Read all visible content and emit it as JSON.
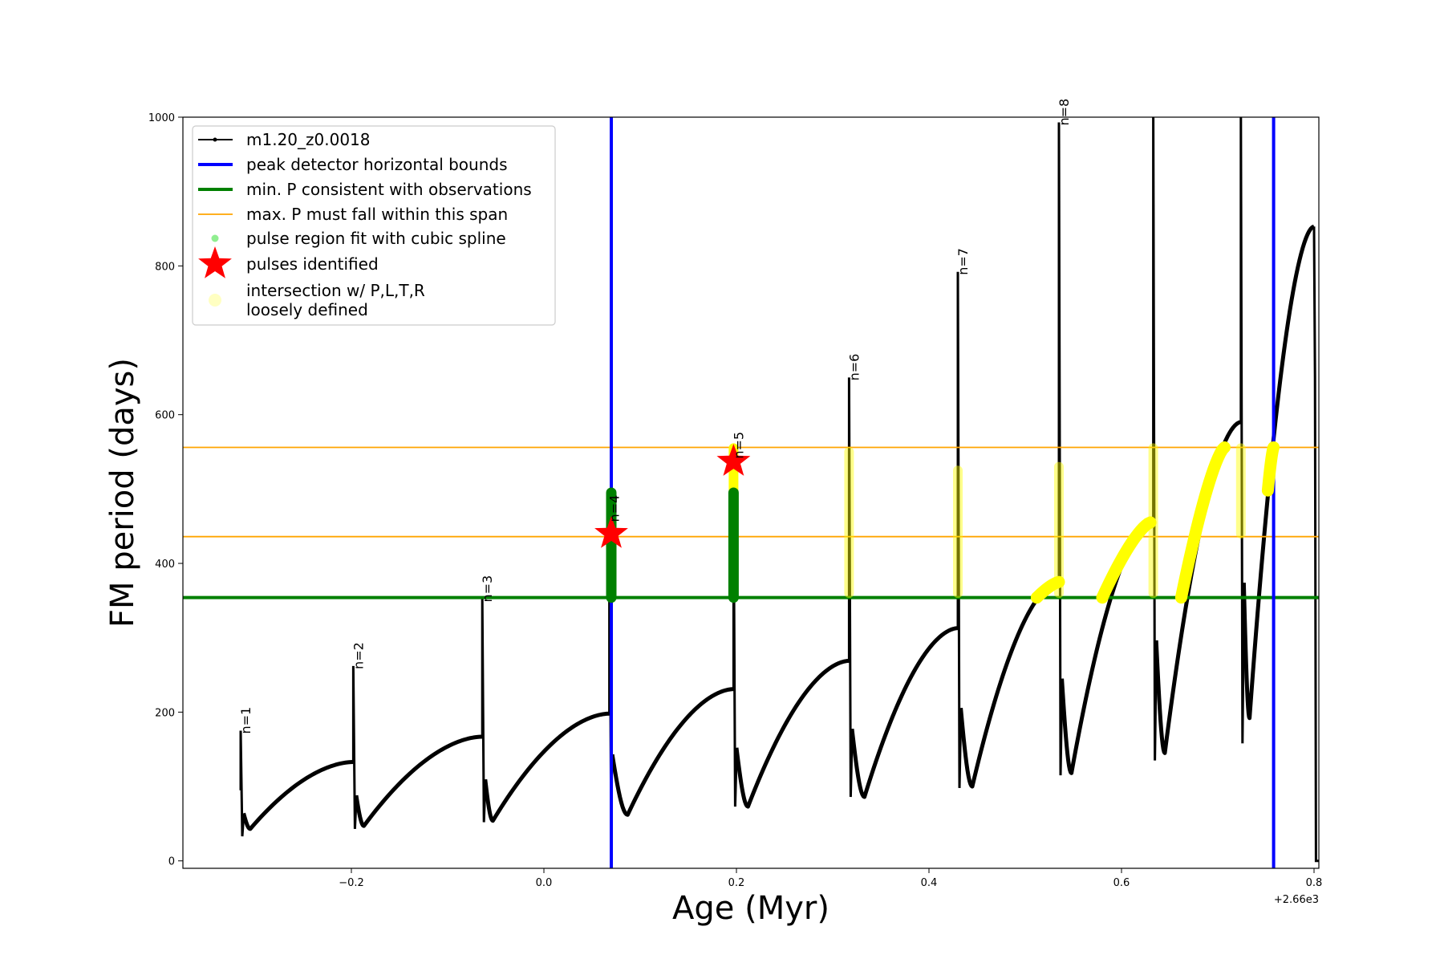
{
  "chart_data": {
    "type": "line",
    "title": "",
    "xlabel": "Age (Myr)",
    "ylabel": "FM period (days)",
    "x_offset_label": "+2.66e3",
    "xlim": [
      -0.375,
      0.805
    ],
    "ylim": [
      -10,
      1000
    ],
    "xticks": [
      {
        "value": -0.2,
        "label": "−0.2"
      },
      {
        "value": 0.0,
        "label": "0.0"
      },
      {
        "value": 0.2,
        "label": "0.2"
      },
      {
        "value": 0.4,
        "label": "0.4"
      },
      {
        "value": 0.6,
        "label": "0.6"
      },
      {
        "value": 0.8,
        "label": "0.8"
      }
    ],
    "yticks": [
      {
        "value": 0,
        "label": "0"
      },
      {
        "value": 200,
        "label": "200"
      },
      {
        "value": 400,
        "label": "400"
      },
      {
        "value": 600,
        "label": "600"
      },
      {
        "value": 800,
        "label": "800"
      },
      {
        "value": 1000,
        "label": "1000"
      }
    ],
    "series": {
      "name": "m1.20_z0.0018",
      "color": "#000000",
      "pulses": [
        {
          "x": -0.315,
          "tmin": -0.305,
          "peak": 175,
          "trough": 33,
          "startP": 95,
          "bottom": 43,
          "tEnd": -0.198,
          "endP": 133
        },
        {
          "x": -0.198,
          "tmin": -0.187,
          "peak": 262,
          "trough": 43,
          "startP": 133,
          "bottom": 47,
          "tEnd": -0.064,
          "endP": 167
        },
        {
          "x": -0.064,
          "tmin": -0.053,
          "peak": 352,
          "trough": 52,
          "startP": 167,
          "bottom": 54,
          "tEnd": 0.068,
          "endP": 198
        },
        {
          "x": 0.068,
          "tmin": 0.087,
          "peak": 470,
          "trough": 88,
          "startP": 198,
          "bottom": 62,
          "tEnd": 0.197,
          "endP": 231
        },
        {
          "x": 0.197,
          "tmin": 0.212,
          "peak": 495,
          "trough": 73,
          "startP": 231,
          "bottom": 73,
          "tEnd": 0.317,
          "endP": 269
        },
        {
          "x": 0.317,
          "tmin": 0.333,
          "peak": 650,
          "trough": 86,
          "startP": 269,
          "bottom": 86,
          "tEnd": 0.43,
          "endP": 313
        },
        {
          "x": 0.43,
          "tmin": 0.445,
          "peak": 792,
          "trough": 98,
          "startP": 313,
          "bottom": 100,
          "tEnd": 0.535,
          "endP": 375
        },
        {
          "x": 0.535,
          "tmin": 0.548,
          "peak": 993,
          "trough": 115,
          "startP": 375,
          "bottom": 118,
          "tEnd": 0.633,
          "endP": 458
        },
        {
          "x": 0.633,
          "tmin": 0.645,
          "peak": 1000,
          "trough": 135,
          "startP": 458,
          "bottom": 145,
          "tEnd": 0.724,
          "endP": 590
        },
        {
          "x": 0.724,
          "tmin": 0.733,
          "peak": 1000,
          "trough": 158,
          "startP": 590,
          "bottom": 192,
          "tEnd": 0.8,
          "endP": 853
        }
      ],
      "final_drop": {
        "x": 0.802,
        "values": [
          650,
          0
        ]
      }
    },
    "vertical_lines": {
      "label": "peak detector horizontal bounds",
      "color": "#0000ff",
      "x": [
        0.07,
        0.758
      ]
    },
    "min_period_line": {
      "label": "min. P consistent with observations",
      "color": "#008000",
      "y": 354
    },
    "max_period_lines": {
      "label": "max. P must fall within this span",
      "color": "#ffa500",
      "y": [
        436,
        556
      ]
    },
    "pulse_region_fits": {
      "label": "pulse region fit with cubic spline",
      "color": "#008000",
      "segments": [
        {
          "x": 0.07,
          "y": [
            354,
            495
          ]
        },
        {
          "x": 0.197,
          "y": [
            354,
            495
          ]
        }
      ]
    },
    "pulses_identified": {
      "label": "pulses identified",
      "color": "#ff0000",
      "points": [
        {
          "x": 0.07,
          "y": 440
        },
        {
          "x": 0.197,
          "y": 537
        }
      ]
    },
    "intersections": {
      "label": "intersection w/ P,L,T,R\nloosely defined",
      "color": "#ffff00",
      "vertical_segments": [
        {
          "x": 0.197,
          "y": [
            480,
            555
          ]
        },
        {
          "x": 0.317,
          "y": [
            360,
            550
          ]
        },
        {
          "x": 0.43,
          "y": [
            360,
            525
          ]
        },
        {
          "x": 0.535,
          "y": [
            360,
            530
          ]
        },
        {
          "x": 0.633,
          "y": [
            360,
            555
          ]
        },
        {
          "x": 0.724,
          "y": [
            440,
            555
          ]
        }
      ],
      "curve_segments": [
        {
          "x": [
            0.512,
            0.535
          ],
          "y": [
            354,
            375
          ]
        },
        {
          "x": [
            0.58,
            0.63
          ],
          "y": [
            354,
            455
          ]
        },
        {
          "x": [
            0.662,
            0.707
          ],
          "y": [
            354,
            556
          ]
        },
        {
          "x": [
            0.752,
            0.758
          ],
          "y": [
            498,
            556
          ]
        }
      ]
    },
    "pulse_labels": [
      {
        "text": "n=1",
        "x": -0.315,
        "y": 175
      },
      {
        "text": "n=2",
        "x": -0.198,
        "y": 262
      },
      {
        "text": "n=3",
        "x": -0.064,
        "y": 352
      },
      {
        "text": "n=4",
        "x": 0.068,
        "y": 460
      },
      {
        "text": "n=5",
        "x": 0.197,
        "y": 545
      },
      {
        "text": "n=6",
        "x": 0.317,
        "y": 650
      },
      {
        "text": "n=7",
        "x": 0.43,
        "y": 792
      },
      {
        "text": "n=8",
        "x": 0.535,
        "y": 993
      }
    ],
    "legend": {
      "location": "top-left",
      "entries": [
        {
          "key": "line-marker",
          "label": "m1.20_z0.0018",
          "color": "#000000"
        },
        {
          "key": "line-thick",
          "label": "peak detector horizontal bounds",
          "color": "#0000ff"
        },
        {
          "key": "line-thick",
          "label": "min. P consistent with observations",
          "color": "#008000"
        },
        {
          "key": "line-thin",
          "label": "max. P must fall within this span",
          "color": "#ffa500"
        },
        {
          "key": "dot",
          "label": "pulse region fit with cubic spline",
          "color": "#90ee90"
        },
        {
          "key": "star",
          "label": "pulses identified",
          "color": "#ff0000"
        },
        {
          "key": "dot-faint",
          "label_lines": [
            "intersection w/ P,L,T,R",
            "loosely defined"
          ],
          "color": "#ffff99"
        }
      ]
    }
  }
}
